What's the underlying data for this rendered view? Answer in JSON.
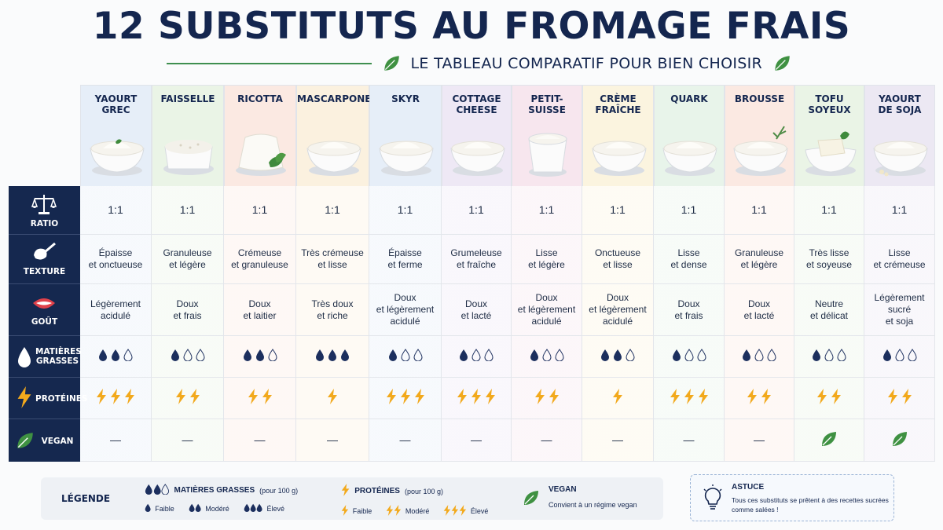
{
  "header": {
    "title": "12 SUBSTITUTS AU FROMAGE FRAIS",
    "subtitle": "LE TABLEAU COMPARATIF POUR BIEN CHOISIR"
  },
  "row_labels": {
    "ratio": "RATIO",
    "texture": "TEXTURE",
    "gout": "GOÛT",
    "matieres": "MATIÈRES\nGRASSES",
    "proteines": "PROTÉINES",
    "vegan": "VEGAN"
  },
  "colors": {
    "navy": "#15284f",
    "drop": "#1c2f5e",
    "bolt": "#f2a91c",
    "leaf": "#3f9142"
  },
  "products": [
    {
      "name": "YAOURT\nGREC",
      "tint": "#e6eef8",
      "ratio": "1:1",
      "texture": "Épaisse\net onctueuse",
      "gout": "Légèrement\nacidulé",
      "fat": 2,
      "protein": 3,
      "vegan": false
    },
    {
      "name": "FAISSELLE",
      "tint": "#eaf4e6",
      "ratio": "1:1",
      "texture": "Granuleuse\net légère",
      "gout": "Doux\net frais",
      "fat": 1,
      "protein": 2,
      "vegan": false
    },
    {
      "name": "RICOTTA",
      "tint": "#fbe9e2",
      "ratio": "1:1",
      "texture": "Crémeuse\net granuleuse",
      "gout": "Doux\net laitier",
      "fat": 2,
      "protein": 2,
      "vegan": false
    },
    {
      "name": "MASCARPONE",
      "tint": "#fbf1df",
      "ratio": "1:1",
      "texture": "Très crémeuse\net lisse",
      "gout": "Très doux\net riche",
      "fat": 3,
      "protein": 1,
      "vegan": false
    },
    {
      "name": "SKYR",
      "tint": "#e6eef8",
      "ratio": "1:1",
      "texture": "Épaisse\net ferme",
      "gout": "Doux\net légèrement\nacidulé",
      "fat": 1,
      "protein": 3,
      "vegan": false
    },
    {
      "name": "COTTAGE\nCHEESE",
      "tint": "#eee8f5",
      "ratio": "1:1",
      "texture": "Grumeleuse\net fraîche",
      "gout": "Doux\net lacté",
      "fat": 1,
      "protein": 3,
      "vegan": false
    },
    {
      "name": "PETIT-SUISSE",
      "tint": "#f7e6ee",
      "ratio": "1:1",
      "texture": "Lisse\net légère",
      "gout": "Doux\net légèrement\nacidulé",
      "fat": 1,
      "protein": 2,
      "vegan": false
    },
    {
      "name": "CRÈME\nFRAÎCHE",
      "tint": "#fbf4df",
      "ratio": "1:1",
      "texture": "Onctueuse\net lisse",
      "gout": "Doux\net légèrement\nacidulé",
      "fat": 2,
      "protein": 1,
      "vegan": false
    },
    {
      "name": "QUARK",
      "tint": "#e8f4ea",
      "ratio": "1:1",
      "texture": "Lisse\net dense",
      "gout": "Doux\net frais",
      "fat": 1,
      "protein": 3,
      "vegan": false
    },
    {
      "name": "BROUSSE",
      "tint": "#fbe9e2",
      "ratio": "1:1",
      "texture": "Granuleuse\net légère",
      "gout": "Doux\net lacté",
      "fat": 1,
      "protein": 2,
      "vegan": false
    },
    {
      "name": "TOFU\nSOYEUX",
      "tint": "#eaf4e6",
      "ratio": "1:1",
      "texture": "Très lisse\net soyeuse",
      "gout": "Neutre\net délicat",
      "fat": 1,
      "protein": 2,
      "vegan": true
    },
    {
      "name": "YAOURT\nDE SOJA",
      "tint": "#ece8f3",
      "ratio": "1:1",
      "texture": "Lisse\net crémeuse",
      "gout": "Légèrement\nsucré\net soja",
      "fat": 1,
      "protein": 2,
      "vegan": true
    }
  ],
  "vegan_no": "—",
  "legend": {
    "title": "LÉGENDE",
    "fat_title": "MATIÈRES GRASSES",
    "fat_per": "(pour 100 g)",
    "prot_title": "PROTÉINES",
    "prot_per": "(pour 100 g)",
    "low": "Faible",
    "mid": "Modéré",
    "high": "Élevé",
    "vegan_title": "VEGAN",
    "vegan_text": "Convient à un régime vegan"
  },
  "tip": {
    "title": "ASTUCE",
    "text": "Tous ces substituts se prêtent à des recettes sucrées comme salées !"
  }
}
